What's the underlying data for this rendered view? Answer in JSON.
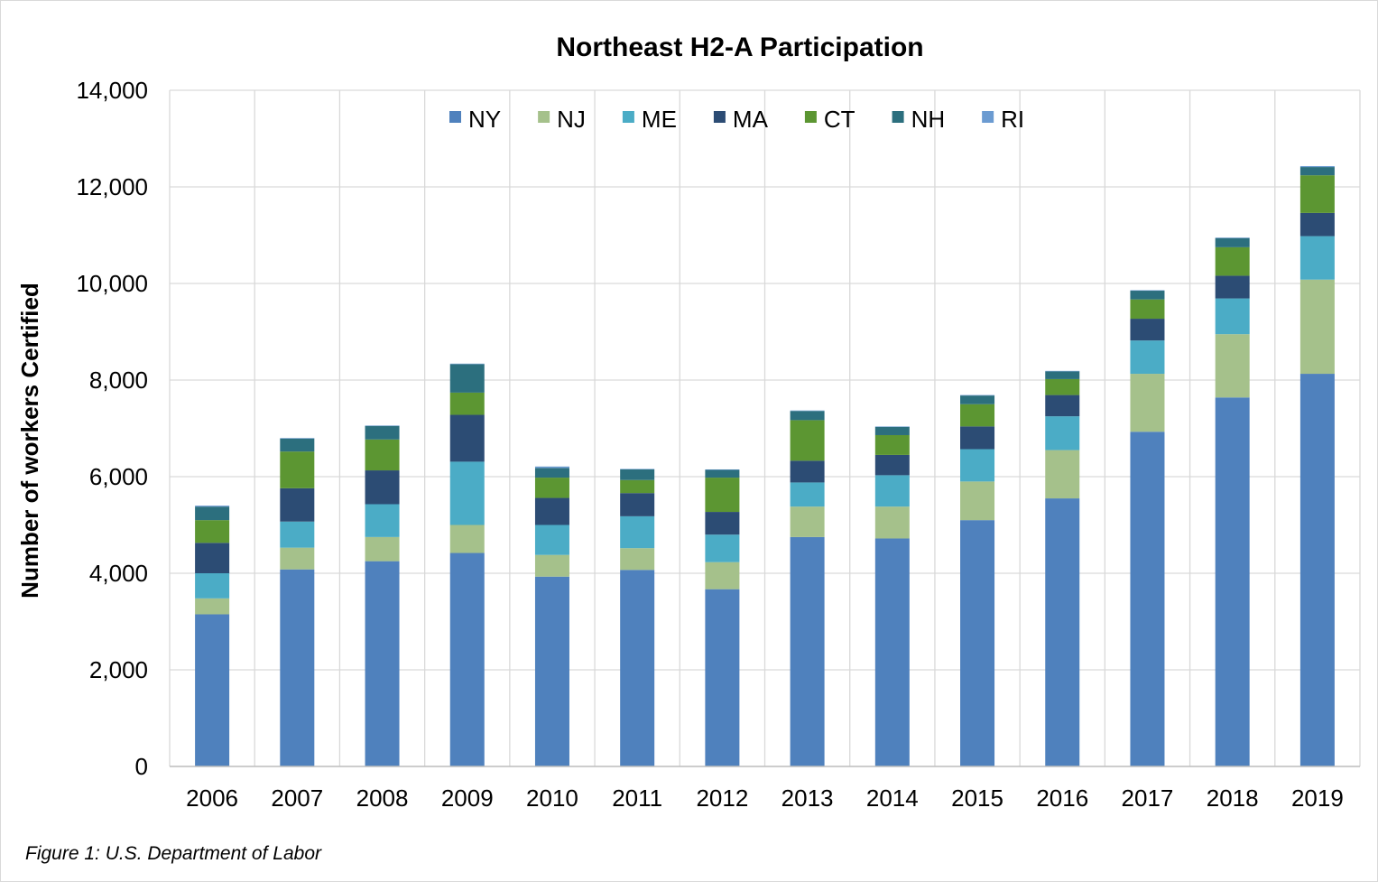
{
  "chart_data": {
    "type": "bar",
    "stacked": true,
    "title": "Northeast H2-A Participation",
    "xlabel": "",
    "ylabel": "Number of workers Certified",
    "ylim": [
      0,
      14000
    ],
    "yticks": [
      "0",
      "2,000",
      "4,000",
      "6,000",
      "8,000",
      "10,000",
      "12,000",
      "14,000"
    ],
    "grid": true,
    "legend_position": "top",
    "categories": [
      "2006",
      "2007",
      "2008",
      "2009",
      "2010",
      "2011",
      "2012",
      "2013",
      "2014",
      "2015",
      "2016",
      "2017",
      "2018",
      "2019"
    ],
    "series": [
      {
        "name": "NY",
        "color": "#4f81bd",
        "values": [
          3150,
          4080,
          4250,
          4420,
          3930,
          4070,
          3670,
          4750,
          4720,
          5100,
          5550,
          6930,
          7640,
          8130
        ]
      },
      {
        "name": "NJ",
        "color": "#a5c18b",
        "values": [
          330,
          450,
          500,
          580,
          450,
          450,
          560,
          630,
          660,
          800,
          1000,
          1200,
          1310,
          1950
        ]
      },
      {
        "name": "ME",
        "color": "#4bacc6",
        "values": [
          520,
          540,
          680,
          1310,
          620,
          660,
          570,
          500,
          650,
          670,
          700,
          690,
          740,
          900
        ]
      },
      {
        "name": "MA",
        "color": "#2c4c74",
        "values": [
          630,
          690,
          700,
          970,
          560,
          480,
          470,
          450,
          420,
          470,
          440,
          450,
          470,
          480
        ]
      },
      {
        "name": "CT",
        "color": "#5c9632",
        "values": [
          470,
          760,
          640,
          460,
          420,
          270,
          710,
          840,
          410,
          460,
          330,
          400,
          590,
          780
        ]
      },
      {
        "name": "NH",
        "color": "#2c6f7e",
        "values": [
          280,
          270,
          280,
          590,
          200,
          220,
          160,
          190,
          170,
          180,
          160,
          180,
          190,
          170
        ]
      },
      {
        "name": "RI",
        "color": "#6b9bd1",
        "values": [
          20,
          10,
          10,
          10,
          30,
          10,
          10,
          10,
          10,
          10,
          10,
          10,
          10,
          20
        ]
      }
    ]
  },
  "caption": "Figure 1: U.S. Department of Labor"
}
